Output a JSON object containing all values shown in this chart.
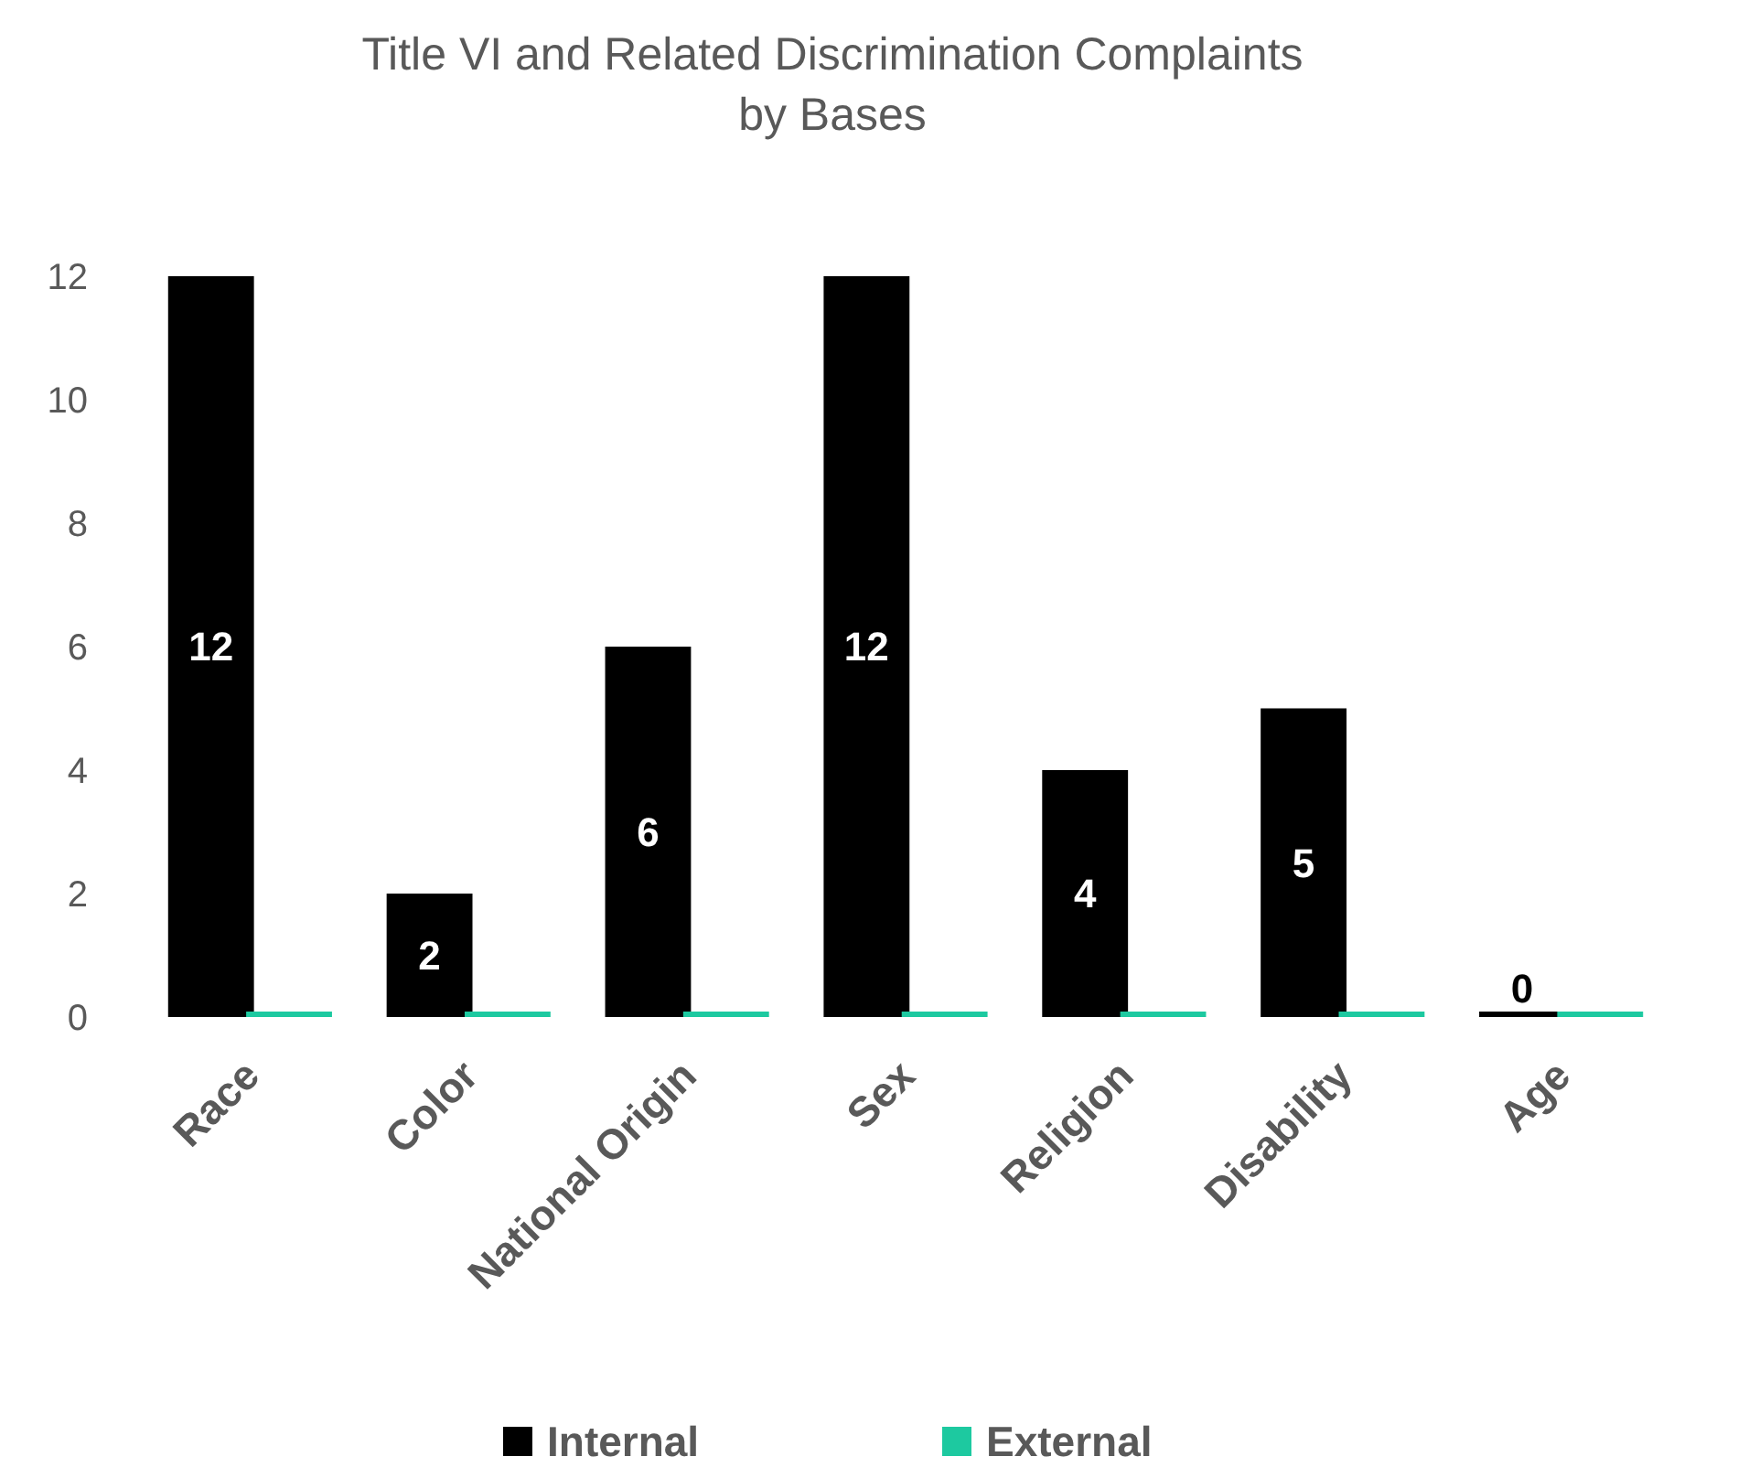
{
  "chart_data": {
    "type": "bar",
    "title": "Title VI and Related Discrimination Complaints by Bases",
    "categories": [
      "Race",
      "Color",
      "National Origin",
      "Sex",
      "Religion",
      "Disability",
      "Age"
    ],
    "series": [
      {
        "name": "Internal",
        "color": "#000000",
        "values": [
          12,
          2,
          6,
          12,
          4,
          5,
          0
        ],
        "value_labels": [
          "12",
          "2",
          "6",
          "12",
          "4",
          "5",
          "0"
        ]
      },
      {
        "name": "External",
        "color": "#1dc9a0",
        "values": [
          0,
          0,
          0,
          0,
          0,
          0,
          0
        ]
      }
    ],
    "ylim": [
      0,
      12
    ],
    "yticks": [
      0,
      2,
      4,
      6,
      8,
      10,
      12
    ],
    "grid": false,
    "legend": "bottom"
  }
}
